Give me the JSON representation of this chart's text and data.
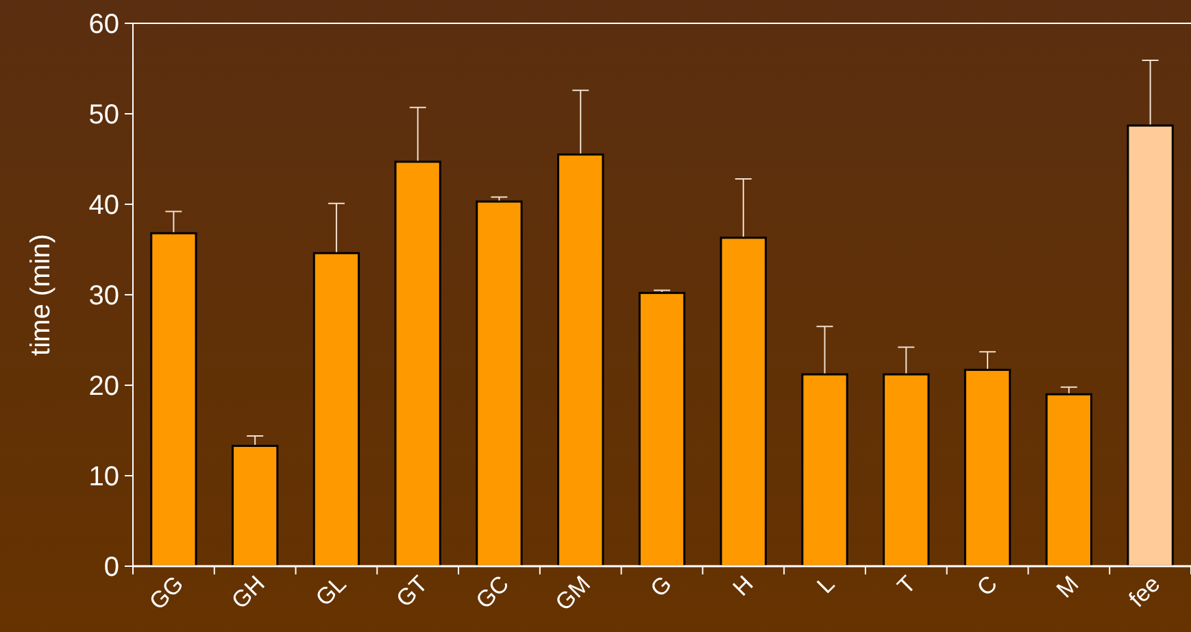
{
  "chart_data": {
    "type": "bar",
    "ylabel": "time (min)",
    "categories": [
      "GG",
      "GH",
      "GL",
      "GT",
      "GC",
      "GM",
      "G",
      "H",
      "L",
      "T",
      "C",
      "M",
      "fee"
    ],
    "values": [
      36.8,
      13.3,
      34.6,
      44.7,
      40.3,
      45.5,
      30.2,
      36.3,
      21.2,
      21.2,
      21.7,
      19.0,
      48.7
    ],
    "colors": [
      "#ff9900",
      "#ff9900",
      "#ff9900",
      "#ff9900",
      "#ff9900",
      "#ff9900",
      "#ff9900",
      "#ff9900",
      "#ff9900",
      "#ff9900",
      "#ff9900",
      "#ff9900",
      "#ffcc99"
    ],
    "errors": [
      2.4,
      1.1,
      5.5,
      6.0,
      0.5,
      7.1,
      0.3,
      6.5,
      5.3,
      3.0,
      2.0,
      0.8,
      7.2
    ],
    "ylim": [
      0,
      60
    ],
    "yticks": [
      0,
      10,
      20,
      30,
      40,
      50,
      60
    ]
  }
}
